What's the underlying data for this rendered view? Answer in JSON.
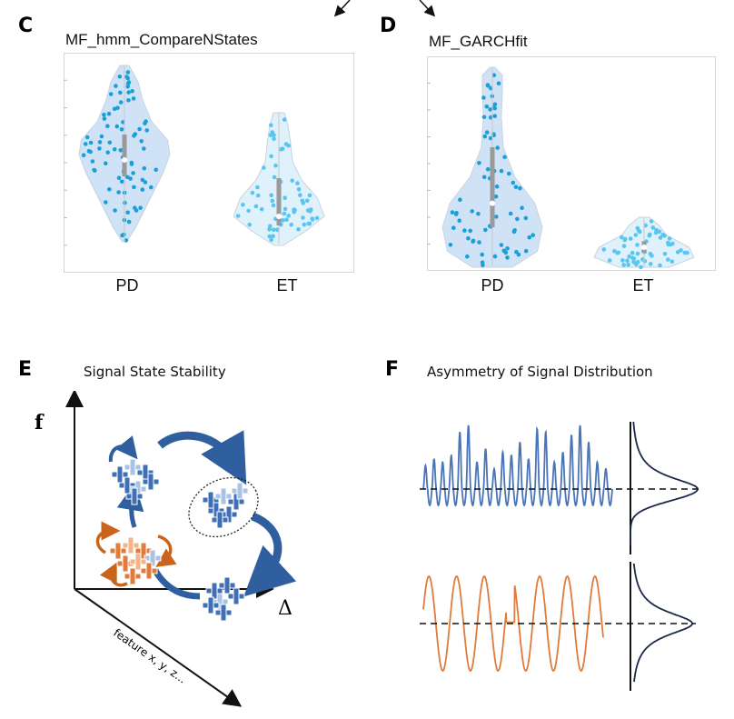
{
  "panels": {
    "C": {
      "letter": "C",
      "title": "MF_hmm_CompareNStates",
      "categories": [
        "PD",
        "ET"
      ],
      "colors": {
        "PD_fill": "#cfe2f6",
        "ET_fill": "#dff1fb",
        "PD_point": "#1aa0d8",
        "ET_point": "#58c6ee",
        "box": "#9a9a9a"
      }
    },
    "D": {
      "letter": "D",
      "title": "MF_GARCHfit",
      "categories": [
        "PD",
        "ET"
      ]
    },
    "E": {
      "letter": "E",
      "title": "Signal State Stability",
      "y_axis_label": "f",
      "x_axis_label": "Δ",
      "z_axis_label": "feature x, y, z...",
      "colors": {
        "blue": "#3f6fb5",
        "light_blue": "#a9c3e6",
        "orange": "#e07b39",
        "light_orange": "#f2b48a",
        "arrow": "#2f5f9e"
      }
    },
    "F": {
      "letter": "F",
      "title": "Asymmetry of Signal Distribution",
      "colors": {
        "blue_wave": "#4a74b8",
        "orange_wave": "#e07b39",
        "density": "#1c2a4a"
      }
    }
  },
  "chart_data": [
    {
      "type": "violin",
      "panel": "C",
      "title": "MF_hmm_CompareNStates",
      "categories": [
        "PD",
        "ET"
      ],
      "series": [
        {
          "category": "PD",
          "median": 0.47,
          "q1": 0.38,
          "q3": 0.61,
          "min": 0.02,
          "max": 0.99
        },
        {
          "category": "ET",
          "median": 0.16,
          "q1": 0.11,
          "q3": 0.37,
          "min": 0.01,
          "max": 0.73
        }
      ],
      "ylim": [
        0,
        1
      ]
    },
    {
      "type": "violin",
      "panel": "D",
      "title": "MF_GARCHfit",
      "categories": [
        "PD",
        "ET"
      ],
      "series": [
        {
          "category": "PD",
          "median": 0.32,
          "q1": 0.2,
          "q3": 0.6,
          "min": 0.01,
          "max": 1.0
        },
        {
          "category": "ET",
          "median": 0.1,
          "q1": 0.07,
          "q3": 0.13,
          "min": 0.0,
          "max": 0.25
        }
      ],
      "ylim": [
        0,
        1
      ]
    }
  ]
}
